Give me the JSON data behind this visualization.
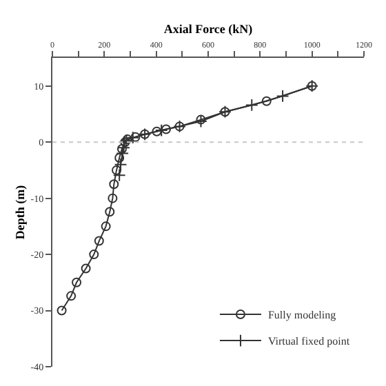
{
  "chart_data": {
    "type": "line",
    "xlabel": "Axial Force (kN)",
    "ylabel": "Depth (m)",
    "xlim": [
      0,
      1200
    ],
    "xticks": [
      0,
      {
        "value": 100,
        "label": null
      },
      200,
      {
        "value": 300,
        "label": null
      },
      400,
      {
        "value": 500,
        "label": null
      },
      600,
      {
        "value": 700,
        "label": null
      },
      800,
      {
        "value": 900,
        "label": null
      },
      1000,
      {
        "value": 1100,
        "label": null
      },
      1200
    ],
    "ylim": [
      -40,
      15
    ],
    "yticks": [
      -40,
      -30,
      -20,
      -10,
      0,
      10
    ],
    "legend": "bottom right",
    "line_style": "solid",
    "ref_lines": [
      {
        "axis": "y",
        "value": 0,
        "color": "#c8c8c8",
        "line_style": "dotted"
      }
    ],
    "series": [
      {
        "name": "Fully modeling",
        "color": "#333333",
        "marker": "circle",
        "x": [
          1000,
          825,
          665,
          572,
          490,
          438,
          402,
          356,
          320,
          289,
          280,
          268,
          258,
          247,
          237,
          232,
          221,
          206,
          180,
          160,
          129,
          93,
          72,
          36
        ],
        "values": [
          10,
          7.3,
          5.4,
          4,
          2.8,
          2.3,
          1.9,
          1.4,
          0.9,
          0.5,
          0,
          -1.2,
          -2.8,
          -5,
          -7.5,
          -10,
          -12.4,
          -15,
          -17.6,
          -20,
          -22.5,
          -25,
          -27.4,
          -30
        ]
      },
      {
        "name": "Virtual fixed point",
        "color": "#333333",
        "marker": "cross",
        "x": [
          1000,
          887,
          768,
          665,
          572,
          490,
          420,
          356,
          310,
          285,
          278,
          275,
          270,
          263,
          258
        ],
        "values": [
          10,
          8.2,
          6.6,
          5.4,
          3.7,
          2.8,
          2.1,
          1.4,
          0.8,
          0.3,
          0,
          -1,
          -2,
          -4,
          -5.9
        ]
      }
    ]
  }
}
